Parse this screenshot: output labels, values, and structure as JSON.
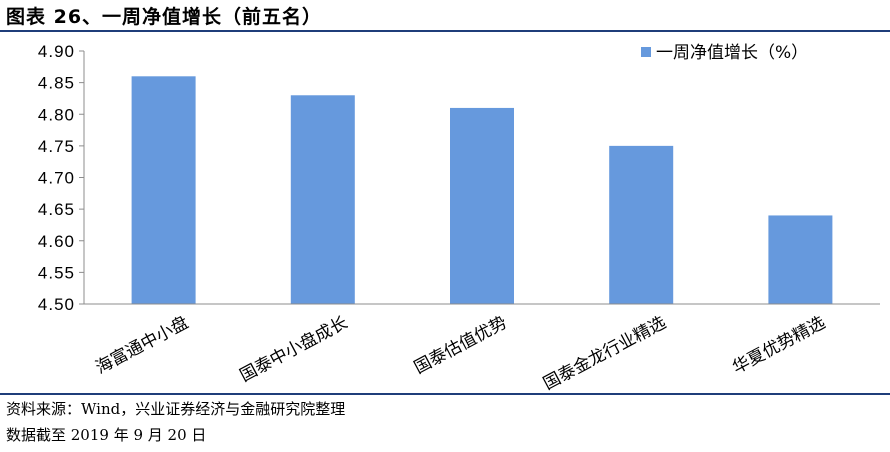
{
  "figure": {
    "title": "图表 26、一周净值增长（前五名）",
    "source_note": "资料来源：Wind，兴业证券经济与金融研究院整理",
    "date_note": "数据截至 2019 年 9 月 20 日"
  },
  "chart_data": {
    "type": "bar",
    "title": "",
    "xlabel": "",
    "ylabel": "",
    "categories": [
      "海富通中小盘",
      "国泰中小盘成长",
      "国泰估值优势",
      "国泰金龙行业精选",
      "华夏优势精选"
    ],
    "series": [
      {
        "name": "一周净值增长（%）",
        "values": [
          4.86,
          4.83,
          4.81,
          4.75,
          4.64
        ],
        "color": "#6699dd"
      }
    ],
    "ylim": [
      4.5,
      4.9
    ],
    "yticks": [
      "4.90",
      "4.85",
      "4.80",
      "4.75",
      "4.70",
      "4.65",
      "4.60",
      "4.55",
      "4.50"
    ],
    "grid": false,
    "legend_position": "top-right"
  }
}
